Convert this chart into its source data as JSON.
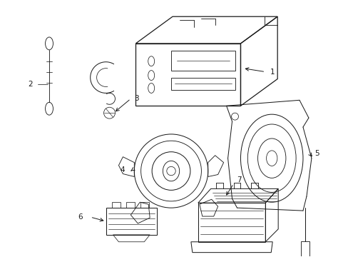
{
  "background_color": "#ffffff",
  "line_color": "#1a1a1a",
  "line_width": 0.9,
  "figure_width": 4.89,
  "figure_height": 3.6,
  "dpi": 100
}
